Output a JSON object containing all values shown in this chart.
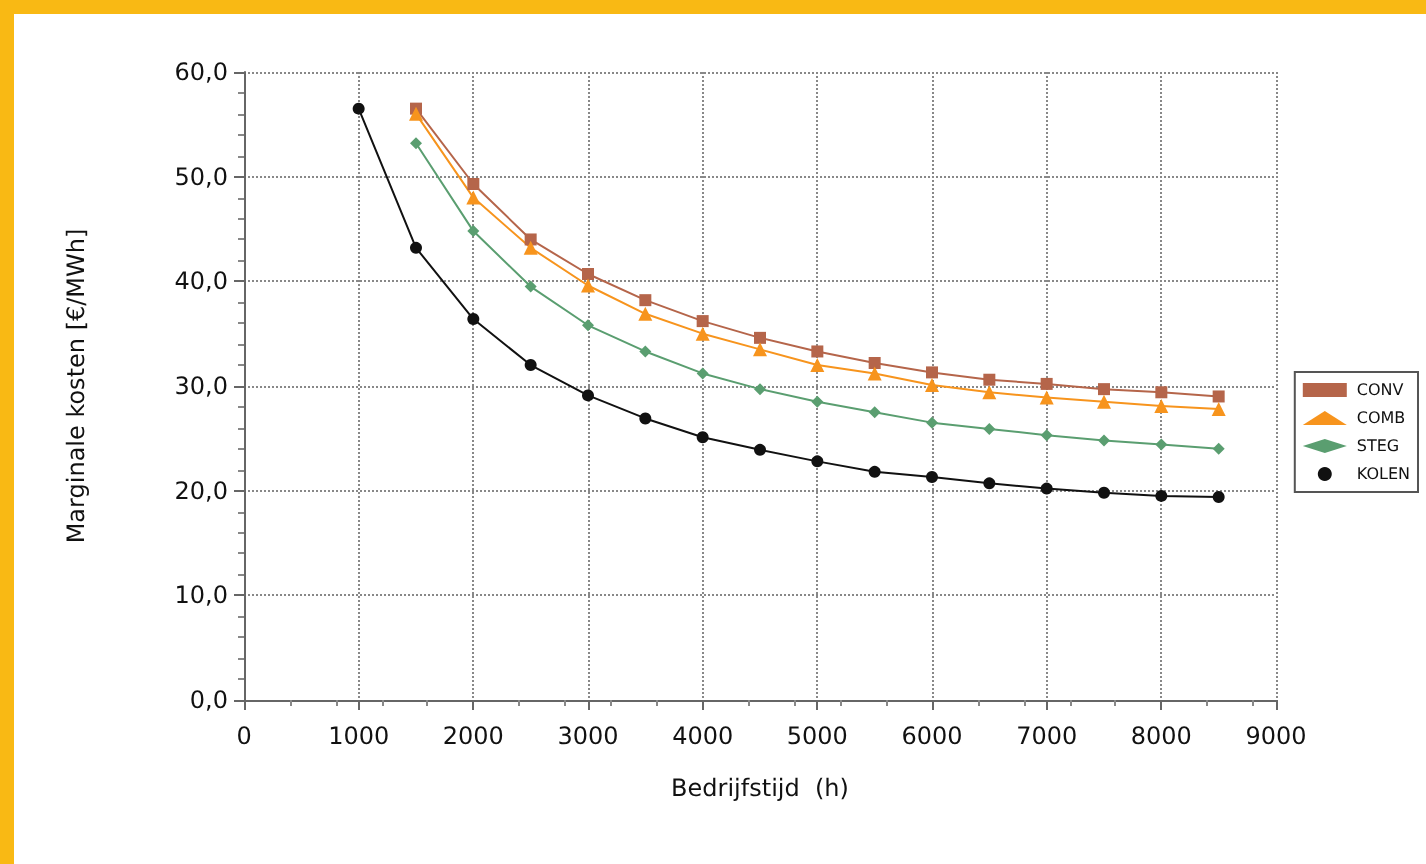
{
  "chart_data": {
    "type": "line",
    "xlabel": "Bedrijfstijd  (h)",
    "ylabel": "Marginale kosten [€/MWh]",
    "x": [
      1000,
      1500,
      2000,
      2500,
      3000,
      3500,
      4000,
      4500,
      5000,
      5500,
      6000,
      6500,
      7000,
      7500,
      8000,
      8500
    ],
    "series": [
      {
        "name": "CONV",
        "color": "#b5654a",
        "marker": "square",
        "values": [
          null,
          56.5,
          49.3,
          44.0,
          40.7,
          38.2,
          36.2,
          34.6,
          33.3,
          32.2,
          31.3,
          30.6,
          30.2,
          29.7,
          29.4,
          29.0
        ]
      },
      {
        "name": "COMB",
        "color": "#f7941d",
        "marker": "triangle",
        "values": [
          null,
          56.0,
          48.0,
          43.2,
          39.6,
          36.9,
          35.0,
          33.5,
          32.0,
          31.2,
          30.1,
          29.4,
          28.9,
          28.5,
          28.1,
          27.8
        ]
      },
      {
        "name": "STEG",
        "color": "#5a9e70",
        "marker": "diamond",
        "values": [
          null,
          53.2,
          44.8,
          39.5,
          35.8,
          33.3,
          31.2,
          29.7,
          28.5,
          27.5,
          26.5,
          25.9,
          25.3,
          24.8,
          24.4,
          24.0
        ]
      },
      {
        "name": "KOLEN",
        "color": "#111111",
        "marker": "circle",
        "values": [
          56.5,
          43.2,
          36.4,
          32.0,
          29.1,
          26.9,
          25.1,
          23.9,
          22.8,
          21.8,
          21.3,
          20.7,
          20.2,
          19.8,
          19.5,
          19.4
        ]
      }
    ],
    "xlim": [
      0,
      9000
    ],
    "xticks": [
      0,
      1000,
      2000,
      3000,
      4000,
      5000,
      6000,
      7000,
      8000,
      9000
    ],
    "ylim": [
      0,
      60
    ],
    "yticks": [
      {
        "value": 0,
        "label": "0,0"
      },
      {
        "value": 10,
        "label": "10,0"
      },
      {
        "value": 20,
        "label": "20,0"
      },
      {
        "value": 30,
        "label": "30,0"
      },
      {
        "value": 40,
        "label": "40,0"
      },
      {
        "value": 50,
        "label": "50,0"
      },
      {
        "value": 60,
        "label": "60,0"
      }
    ],
    "grid": true,
    "legend": "right",
    "line_style": "solid"
  }
}
